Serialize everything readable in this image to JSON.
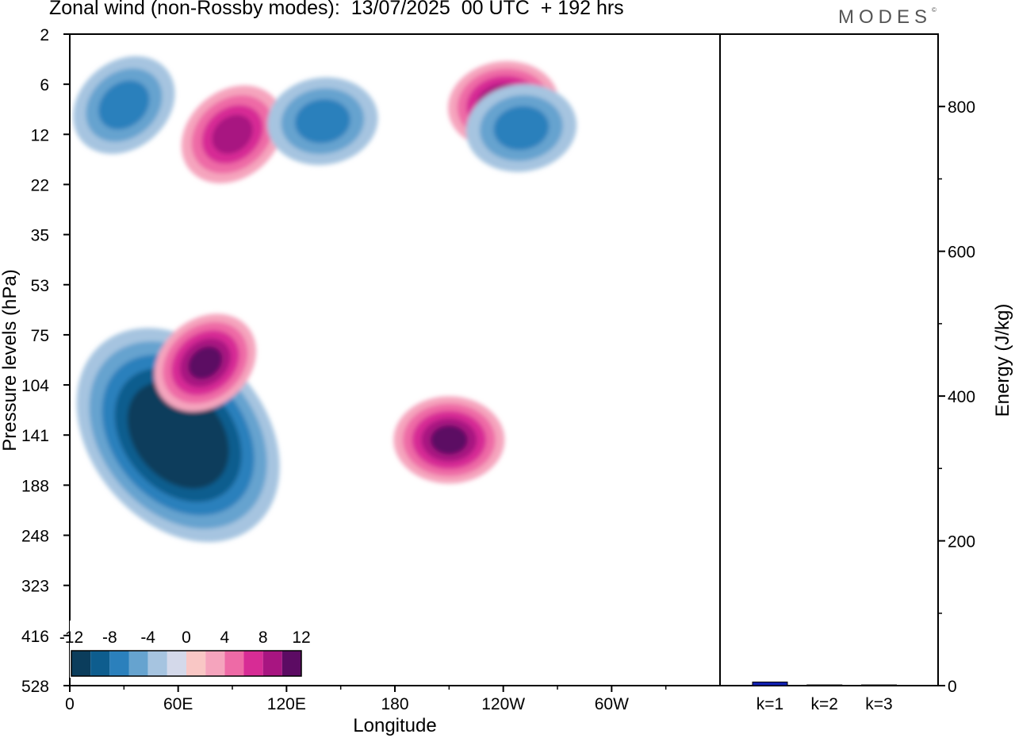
{
  "title": "Zonal wind (non-Rossby modes):  13/07/2025  00 UTC  + 192 hrs",
  "logo": "MODES",
  "colors": {
    "neg": [
      "#0b3d5c",
      "#0e5d8e",
      "#2b80bc",
      "#66a3cf",
      "#a6c4e0",
      "#d4d9ea"
    ],
    "zero": "#ffffff",
    "pos": [
      "#f9c7c5",
      "#f5a4bd",
      "#ee6aa6",
      "#d72c95",
      "#a81581",
      "#5c0b63"
    ],
    "bar": "#1020b0"
  },
  "chart_data": [
    {
      "type": "heatmap",
      "xlabel": "Longitude",
      "ylabel": "Pressure levels (hPa)",
      "x_ticks": [
        "0",
        "60E",
        "120E",
        "180",
        "120W",
        "60W"
      ],
      "y_ticks": [
        "2",
        "6",
        "12",
        "22",
        "35",
        "53",
        "75",
        "104",
        "141",
        "188",
        "248",
        "323",
        "416",
        "528"
      ],
      "colorbar": {
        "levels": [
          -12,
          -10,
          -8,
          -6,
          -4,
          -2,
          0,
          2,
          4,
          6,
          8,
          10,
          12
        ],
        "labels": [
          "-12",
          "-8",
          "-4",
          "0",
          "4",
          "8",
          "12"
        ]
      },
      "features": [
        {
          "lon": 60,
          "level": 141,
          "value": -14
        },
        {
          "lon": 75,
          "level": 90,
          "value": 10
        },
        {
          "lon": 210,
          "level": 145,
          "value": 10
        },
        {
          "lon": 240,
          "level": 8,
          "value": 10
        },
        {
          "lon": 90,
          "level": 12,
          "value": 8
        },
        {
          "lon": 140,
          "level": 10,
          "value": -6
        },
        {
          "lon": 30,
          "level": 8,
          "value": -6
        },
        {
          "lon": 250,
          "level": 11,
          "value": -6
        }
      ]
    },
    {
      "type": "bar",
      "categories": [
        "k=1",
        "k=2",
        "k=3"
      ],
      "values": [
        5,
        1,
        1
      ],
      "ylabel": "Energy (J/kg)",
      "y_ticks": [
        "0",
        "200",
        "400",
        "600",
        "800"
      ],
      "ylim": [
        0,
        900
      ]
    }
  ]
}
